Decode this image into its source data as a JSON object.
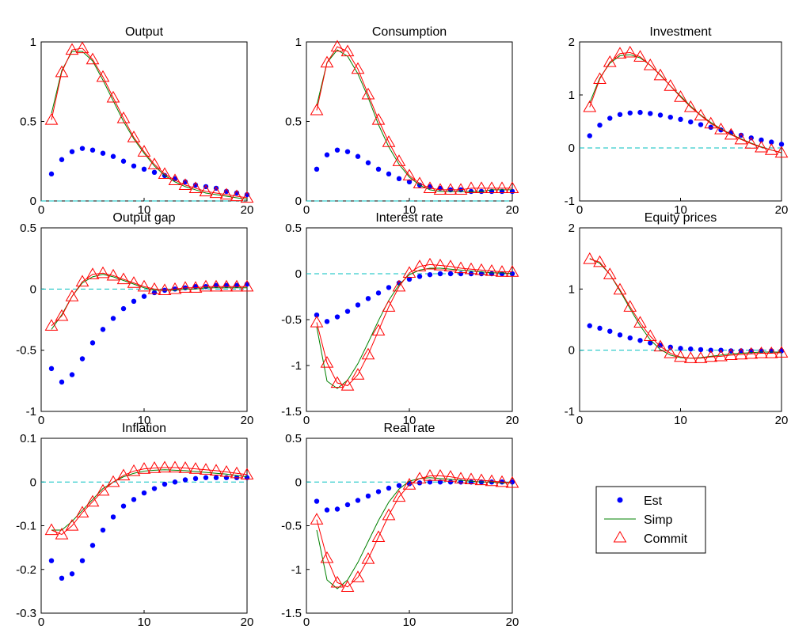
{
  "figure": {
    "legend": {
      "placement": "lower-right",
      "entries": [
        {
          "label": "Est",
          "marker": "dot",
          "color": "#0000ff"
        },
        {
          "label": "Simp",
          "marker": "line",
          "color": "#008000"
        },
        {
          "label": "Commit",
          "marker": "triangle",
          "color": "#ff0000"
        }
      ]
    },
    "colors": {
      "est": "#0000ff",
      "simp": "#008000",
      "commit": "#ff0000",
      "zero_line": "#00bfbf"
    }
  },
  "chart_data": [
    {
      "type": "line",
      "title": "Output",
      "xlim": [
        0,
        20
      ],
      "ylim": [
        0,
        1
      ],
      "xticks": [
        "0",
        "10",
        "20"
      ],
      "yticks": [
        "0",
        "0.5",
        "1"
      ],
      "x": [
        1,
        2,
        3,
        4,
        5,
        6,
        7,
        8,
        9,
        10,
        11,
        12,
        13,
        14,
        15,
        16,
        17,
        18,
        19,
        20
      ],
      "series": [
        {
          "name": "Est",
          "values": [
            0.17,
            0.26,
            0.31,
            0.33,
            0.32,
            0.3,
            0.28,
            0.25,
            0.22,
            0.2,
            0.18,
            0.16,
            0.14,
            0.12,
            0.1,
            0.09,
            0.08,
            0.06,
            0.05,
            0.04
          ]
        },
        {
          "name": "Simp",
          "values": [
            0.55,
            0.82,
            0.94,
            0.94,
            0.88,
            0.76,
            0.63,
            0.5,
            0.39,
            0.3,
            0.22,
            0.16,
            0.12,
            0.09,
            0.07,
            0.05,
            0.04,
            0.03,
            0.02,
            0.01
          ]
        },
        {
          "name": "Commit",
          "values": [
            0.51,
            0.81,
            0.95,
            0.96,
            0.89,
            0.78,
            0.65,
            0.52,
            0.4,
            0.31,
            0.23,
            0.17,
            0.13,
            0.1,
            0.08,
            0.06,
            0.05,
            0.04,
            0.03,
            0.02
          ]
        }
      ],
      "zero_line": 0
    },
    {
      "type": "line",
      "title": "Consumption",
      "xlim": [
        0,
        20
      ],
      "ylim": [
        0,
        1
      ],
      "xticks": [
        "0",
        "10",
        "20"
      ],
      "yticks": [
        "0",
        "0.5",
        "1"
      ],
      "x": [
        1,
        2,
        3,
        4,
        5,
        6,
        7,
        8,
        9,
        10,
        11,
        12,
        13,
        14,
        15,
        16,
        17,
        18,
        19,
        20
      ],
      "series": [
        {
          "name": "Est",
          "values": [
            0.2,
            0.29,
            0.32,
            0.31,
            0.28,
            0.24,
            0.2,
            0.17,
            0.14,
            0.12,
            0.1,
            0.09,
            0.08,
            0.07,
            0.07,
            0.06,
            0.06,
            0.06,
            0.06,
            0.06
          ]
        },
        {
          "name": "Simp",
          "values": [
            0.6,
            0.87,
            0.95,
            0.91,
            0.8,
            0.65,
            0.48,
            0.34,
            0.23,
            0.15,
            0.1,
            0.07,
            0.06,
            0.06,
            0.06,
            0.06,
            0.06,
            0.07,
            0.07,
            0.07
          ]
        },
        {
          "name": "Commit",
          "values": [
            0.57,
            0.87,
            0.97,
            0.94,
            0.83,
            0.67,
            0.51,
            0.37,
            0.25,
            0.16,
            0.11,
            0.08,
            0.07,
            0.07,
            0.07,
            0.08,
            0.08,
            0.08,
            0.08,
            0.08
          ]
        }
      ],
      "zero_line": 0
    },
    {
      "type": "line",
      "title": "Investment",
      "xlim": [
        0,
        20
      ],
      "ylim": [
        -1,
        2
      ],
      "xticks": [
        "0",
        "10",
        "20"
      ],
      "yticks": [
        "-1",
        "0",
        "1",
        "2"
      ],
      "x": [
        1,
        2,
        3,
        4,
        5,
        6,
        7,
        8,
        9,
        10,
        11,
        12,
        13,
        14,
        15,
        16,
        17,
        18,
        19,
        20
      ],
      "series": [
        {
          "name": "Est",
          "values": [
            0.23,
            0.43,
            0.56,
            0.63,
            0.66,
            0.67,
            0.65,
            0.62,
            0.58,
            0.54,
            0.49,
            0.44,
            0.39,
            0.34,
            0.29,
            0.24,
            0.19,
            0.15,
            0.11,
            0.07
          ]
        },
        {
          "name": "Simp",
          "values": [
            0.85,
            1.32,
            1.6,
            1.74,
            1.76,
            1.7,
            1.56,
            1.38,
            1.17,
            0.98,
            0.79,
            0.62,
            0.48,
            0.36,
            0.26,
            0.17,
            0.09,
            0.02,
            -0.04,
            -0.09
          ]
        },
        {
          "name": "Commit",
          "values": [
            0.77,
            1.3,
            1.62,
            1.78,
            1.8,
            1.72,
            1.56,
            1.37,
            1.17,
            0.96,
            0.77,
            0.61,
            0.46,
            0.35,
            0.25,
            0.16,
            0.08,
            0.01,
            -0.04,
            -0.09
          ]
        }
      ],
      "zero_line": 0
    },
    {
      "type": "line",
      "title": "Output gap",
      "xlim": [
        0,
        20
      ],
      "ylim": [
        -1,
        0.5
      ],
      "xticks": [
        "0",
        "10",
        "20"
      ],
      "yticks": [
        "-1",
        "-0.5",
        "0",
        "0.5"
      ],
      "x": [
        1,
        2,
        3,
        4,
        5,
        6,
        7,
        8,
        9,
        10,
        11,
        12,
        13,
        14,
        15,
        16,
        17,
        18,
        19,
        20
      ],
      "series": [
        {
          "name": "Est",
          "values": [
            -0.65,
            -0.76,
            -0.7,
            -0.57,
            -0.44,
            -0.33,
            -0.24,
            -0.16,
            -0.1,
            -0.06,
            -0.03,
            -0.01,
            0.0,
            0.01,
            0.02,
            0.02,
            0.03,
            0.03,
            0.03,
            0.04
          ]
        },
        {
          "name": "Simp",
          "values": [
            -0.33,
            -0.21,
            -0.06,
            0.05,
            0.1,
            0.12,
            0.1,
            0.07,
            0.04,
            0.01,
            -0.01,
            -0.01,
            -0.01,
            0.0,
            0.0,
            0.01,
            0.01,
            0.01,
            0.01,
            0.01
          ]
        },
        {
          "name": "Commit",
          "values": [
            -0.3,
            -0.22,
            -0.06,
            0.06,
            0.12,
            0.13,
            0.11,
            0.08,
            0.05,
            0.02,
            0.0,
            -0.01,
            0.0,
            0.01,
            0.01,
            0.02,
            0.02,
            0.02,
            0.02,
            0.02
          ]
        }
      ],
      "zero_line": 0
    },
    {
      "type": "line",
      "title": "Interest rate",
      "xlim": [
        0,
        20
      ],
      "ylim": [
        -1.5,
        0.5
      ],
      "xticks": [
        "0",
        "10",
        "20"
      ],
      "yticks": [
        "-1.5",
        "-1",
        "-0.5",
        "0",
        "0.5"
      ],
      "x": [
        1,
        2,
        3,
        4,
        5,
        6,
        7,
        8,
        9,
        10,
        11,
        12,
        13,
        14,
        15,
        16,
        17,
        18,
        19,
        20
      ],
      "series": [
        {
          "name": "Est",
          "values": [
            -0.45,
            -0.52,
            -0.47,
            -0.41,
            -0.34,
            -0.27,
            -0.21,
            -0.15,
            -0.1,
            -0.06,
            -0.03,
            -0.01,
            0.0,
            0.0,
            0.0,
            0.0,
            0.0,
            0.0,
            0.0,
            0.0
          ]
        },
        {
          "name": "Simp",
          "values": [
            -0.58,
            -1.17,
            -1.25,
            -1.16,
            -0.98,
            -0.75,
            -0.51,
            -0.29,
            -0.12,
            -0.01,
            0.04,
            0.06,
            0.06,
            0.05,
            0.04,
            0.03,
            0.02,
            0.01,
            0.01,
            0.0
          ]
        },
        {
          "name": "Commit",
          "values": [
            -0.53,
            -0.97,
            -1.19,
            -1.22,
            -1.1,
            -0.88,
            -0.62,
            -0.36,
            -0.14,
            0.01,
            0.08,
            0.1,
            0.09,
            0.08,
            0.06,
            0.05,
            0.04,
            0.03,
            0.02,
            0.02
          ]
        }
      ],
      "zero_line": 0
    },
    {
      "type": "line",
      "title": "Equity prices",
      "xlim": [
        0,
        20
      ],
      "ylim": [
        -1,
        2
      ],
      "xticks": [
        "0",
        "10",
        "20"
      ],
      "yticks": [
        "-1",
        "0",
        "1",
        "2"
      ],
      "x": [
        1,
        2,
        3,
        4,
        5,
        6,
        7,
        8,
        9,
        10,
        11,
        12,
        13,
        14,
        15,
        16,
        17,
        18,
        19,
        20
      ],
      "series": [
        {
          "name": "Est",
          "values": [
            0.4,
            0.36,
            0.31,
            0.25,
            0.2,
            0.16,
            0.12,
            0.08,
            0.05,
            0.03,
            0.02,
            0.01,
            0.0,
            0.0,
            -0.01,
            -0.01,
            -0.01,
            -0.01,
            -0.01,
            -0.01
          ]
        },
        {
          "name": "Simp",
          "values": [
            1.5,
            1.42,
            1.24,
            0.97,
            0.68,
            0.4,
            0.17,
            0.01,
            -0.08,
            -0.12,
            -0.13,
            -0.12,
            -0.1,
            -0.08,
            -0.06,
            -0.05,
            -0.04,
            -0.03,
            -0.03,
            -0.03
          ]
        },
        {
          "name": "Commit",
          "values": [
            1.49,
            1.44,
            1.24,
            0.99,
            0.71,
            0.45,
            0.23,
            0.06,
            -0.05,
            -0.11,
            -0.13,
            -0.13,
            -0.11,
            -0.1,
            -0.08,
            -0.07,
            -0.06,
            -0.05,
            -0.05,
            -0.04
          ]
        }
      ],
      "zero_line": 0
    },
    {
      "type": "line",
      "title": "Inflation",
      "xlim": [
        0,
        20
      ],
      "ylim": [
        -0.3,
        0.1
      ],
      "xticks": [
        "0",
        "10",
        "20"
      ],
      "yticks": [
        "-0.3",
        "-0.2",
        "-0.1",
        "0",
        "0.1"
      ],
      "x": [
        1,
        2,
        3,
        4,
        5,
        6,
        7,
        8,
        9,
        10,
        11,
        12,
        13,
        14,
        15,
        16,
        17,
        18,
        19,
        20
      ],
      "series": [
        {
          "name": "Est",
          "values": [
            -0.18,
            -0.22,
            -0.21,
            -0.18,
            -0.145,
            -0.11,
            -0.08,
            -0.055,
            -0.04,
            -0.025,
            -0.015,
            -0.005,
            0.0,
            0.005,
            0.008,
            0.01,
            0.01,
            0.01,
            0.01,
            0.01
          ]
        },
        {
          "name": "Simp",
          "values": [
            -0.11,
            -0.11,
            -0.09,
            -0.065,
            -0.04,
            -0.015,
            0.0,
            0.012,
            0.02,
            0.025,
            0.027,
            0.028,
            0.027,
            0.026,
            0.024,
            0.022,
            0.02,
            0.018,
            0.015,
            0.012
          ]
        },
        {
          "name": "Commit",
          "values": [
            -0.11,
            -0.12,
            -0.1,
            -0.07,
            -0.045,
            -0.02,
            0.0,
            0.015,
            0.025,
            0.03,
            0.032,
            0.033,
            0.033,
            0.032,
            0.03,
            0.028,
            0.026,
            0.023,
            0.02,
            0.017
          ]
        }
      ],
      "zero_line": 0
    },
    {
      "type": "line",
      "title": "Real rate",
      "xlim": [
        0,
        20
      ],
      "ylim": [
        -1.5,
        0.5
      ],
      "xticks": [
        "0",
        "10",
        "20"
      ],
      "yticks": [
        "-1.5",
        "-1",
        "-0.5",
        "0",
        "0.5"
      ],
      "x": [
        1,
        2,
        3,
        4,
        5,
        6,
        7,
        8,
        9,
        10,
        11,
        12,
        13,
        14,
        15,
        16,
        17,
        18,
        19,
        20
      ],
      "series": [
        {
          "name": "Est",
          "values": [
            -0.22,
            -0.32,
            -0.31,
            -0.26,
            -0.21,
            -0.16,
            -0.11,
            -0.07,
            -0.04,
            -0.02,
            -0.01,
            0.0,
            0.0,
            0.0,
            0.0,
            0.0,
            0.0,
            0.0,
            0.0,
            0.0
          ]
        },
        {
          "name": "Simp",
          "values": [
            -0.55,
            -1.12,
            -1.22,
            -1.12,
            -0.92,
            -0.68,
            -0.44,
            -0.23,
            -0.08,
            0.01,
            0.04,
            0.05,
            0.04,
            0.03,
            0.02,
            0.01,
            0.0,
            0.0,
            -0.01,
            -0.01
          ]
        },
        {
          "name": "Commit",
          "values": [
            -0.43,
            -0.87,
            -1.15,
            -1.2,
            -1.09,
            -0.88,
            -0.63,
            -0.38,
            -0.17,
            -0.03,
            0.04,
            0.07,
            0.07,
            0.06,
            0.04,
            0.03,
            0.02,
            0.01,
            0.0,
            -0.01
          ]
        }
      ],
      "zero_line": 0
    }
  ]
}
